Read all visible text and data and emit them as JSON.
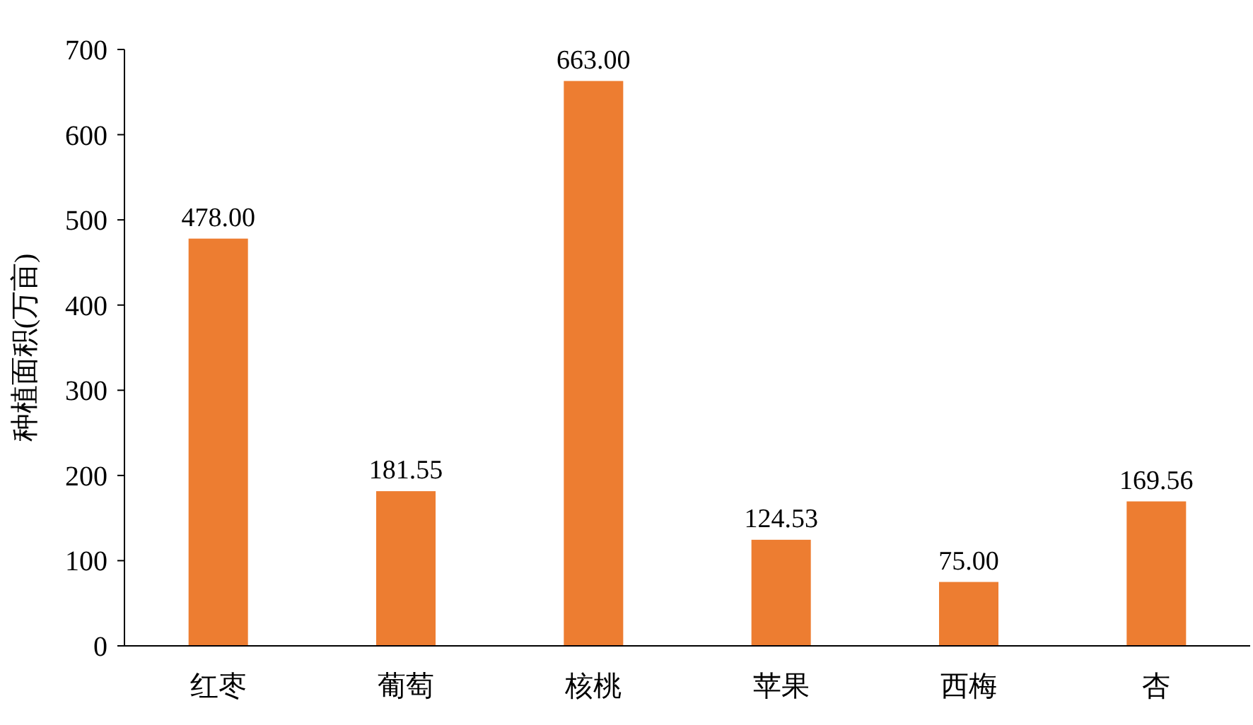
{
  "chart_data": {
    "type": "bar",
    "ylabel": "种植面积(万亩)",
    "categories": [
      "红枣",
      "葡萄",
      "核桃",
      "苹果",
      "西梅",
      "杏"
    ],
    "values": [
      478.0,
      181.55,
      663.0,
      124.53,
      75.0,
      169.56
    ],
    "value_labels": [
      "478.00",
      "181.55",
      "663.00",
      "124.53",
      "75.00",
      "169.56"
    ],
    "color": "#ed7d31",
    "ylim": [
      0,
      700
    ],
    "yticks": [
      0,
      100,
      200,
      300,
      400,
      500,
      600,
      700
    ],
    "grid": false
  }
}
